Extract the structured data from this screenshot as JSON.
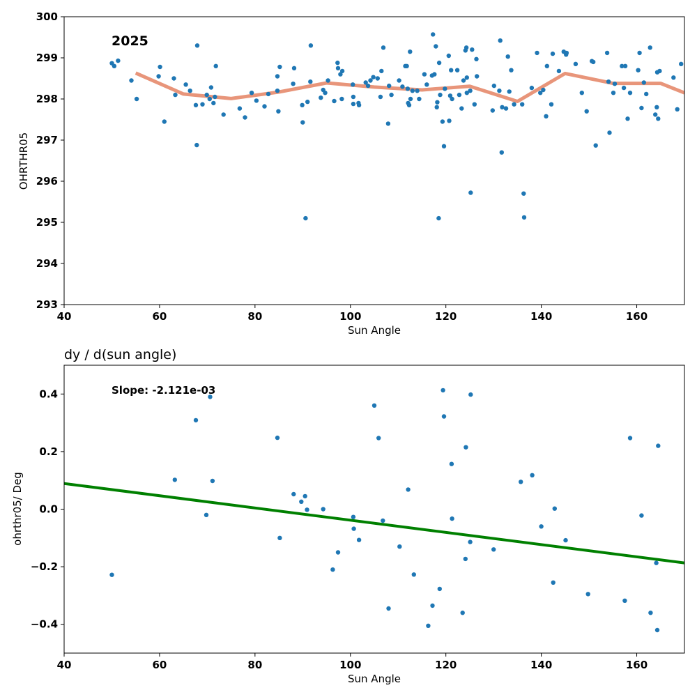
{
  "chart_data": [
    {
      "type": "scatter",
      "title": "",
      "xlabel": "Sun Angle",
      "ylabel": "OHRTHR05",
      "xlim": [
        40,
        170
      ],
      "ylim": [
        293,
        300
      ],
      "xticks": [
        "40",
        "60",
        "80",
        "100",
        "120",
        "140",
        "160"
      ],
      "yticks": [
        "293",
        "294",
        "295",
        "296",
        "297",
        "298",
        "299",
        "300"
      ],
      "annotation": "2025",
      "grid": false,
      "point_color": "#1f77b4",
      "points": [
        [
          50.0,
          298.87
        ],
        [
          50.5,
          298.8
        ],
        [
          51.3,
          298.93
        ],
        [
          54.1,
          298.45
        ],
        [
          55.2,
          298.0
        ],
        [
          59.8,
          298.55
        ],
        [
          60.1,
          298.78
        ],
        [
          61.0,
          297.45
        ],
        [
          63.0,
          298.5
        ],
        [
          63.3,
          298.1
        ],
        [
          65.5,
          298.35
        ],
        [
          66.4,
          298.2
        ],
        [
          67.6,
          297.85
        ],
        [
          67.8,
          296.88
        ],
        [
          67.9,
          299.3
        ],
        [
          69.0,
          297.87
        ],
        [
          69.9,
          298.1
        ],
        [
          70.5,
          298.0
        ],
        [
          70.8,
          298.28
        ],
        [
          71.3,
          297.9
        ],
        [
          71.6,
          298.05
        ],
        [
          71.8,
          298.8
        ],
        [
          73.4,
          297.62
        ],
        [
          76.8,
          297.77
        ],
        [
          77.9,
          297.55
        ],
        [
          79.3,
          298.15
        ],
        [
          80.3,
          297.96
        ],
        [
          82.0,
          297.82
        ],
        [
          82.8,
          298.12
        ],
        [
          84.7,
          298.2
        ],
        [
          84.9,
          297.7
        ],
        [
          84.7,
          298.55
        ],
        [
          85.2,
          298.78
        ],
        [
          88.0,
          298.37
        ],
        [
          88.2,
          298.75
        ],
        [
          89.9,
          297.85
        ],
        [
          90.0,
          297.43
        ],
        [
          90.6,
          295.1
        ],
        [
          91.0,
          297.93
        ],
        [
          91.6,
          298.42
        ],
        [
          91.7,
          299.3
        ],
        [
          93.8,
          298.03
        ],
        [
          94.3,
          298.22
        ],
        [
          94.7,
          298.15
        ],
        [
          95.3,
          298.45
        ],
        [
          96.6,
          297.95
        ],
        [
          97.3,
          298.88
        ],
        [
          97.4,
          298.75
        ],
        [
          97.9,
          298.6
        ],
        [
          98.3,
          298.68
        ],
        [
          98.2,
          298.0
        ],
        [
          100.5,
          298.35
        ],
        [
          100.6,
          298.05
        ],
        [
          100.6,
          297.88
        ],
        [
          101.7,
          297.9
        ],
        [
          101.8,
          297.85
        ],
        [
          103.2,
          298.4
        ],
        [
          103.7,
          298.32
        ],
        [
          104.2,
          298.45
        ],
        [
          104.8,
          298.53
        ],
        [
          105.7,
          298.5
        ],
        [
          106.3,
          298.05
        ],
        [
          106.5,
          298.68
        ],
        [
          106.9,
          299.25
        ],
        [
          107.9,
          297.4
        ],
        [
          108.1,
          298.32
        ],
        [
          108.6,
          298.1
        ],
        [
          110.2,
          298.45
        ],
        [
          110.9,
          298.3
        ],
        [
          111.5,
          298.8
        ],
        [
          111.8,
          298.8
        ],
        [
          112.0,
          298.25
        ],
        [
          112.1,
          297.9
        ],
        [
          112.3,
          297.85
        ],
        [
          112.6,
          298.0
        ],
        [
          112.5,
          299.15
        ],
        [
          113.0,
          298.2
        ],
        [
          114.0,
          298.2
        ],
        [
          114.4,
          298.0
        ],
        [
          115.5,
          298.6
        ],
        [
          116.0,
          298.35
        ],
        [
          117.1,
          298.57
        ],
        [
          117.3,
          299.57
        ],
        [
          117.6,
          298.6
        ],
        [
          117.9,
          299.28
        ],
        [
          118.1,
          297.8
        ],
        [
          118.2,
          297.92
        ],
        [
          118.5,
          295.1
        ],
        [
          118.6,
          298.88
        ],
        [
          118.8,
          298.1
        ],
        [
          119.3,
          297.45
        ],
        [
          119.6,
          296.85
        ],
        [
          119.8,
          298.25
        ],
        [
          120.6,
          299.05
        ],
        [
          120.7,
          297.47
        ],
        [
          120.9,
          298.08
        ],
        [
          121.1,
          298.7
        ],
        [
          121.3,
          298.0
        ],
        [
          122.4,
          298.7
        ],
        [
          122.8,
          298.1
        ],
        [
          123.3,
          297.77
        ],
        [
          123.7,
          298.45
        ],
        [
          124.1,
          299.18
        ],
        [
          124.3,
          299.25
        ],
        [
          124.4,
          298.15
        ],
        [
          124.4,
          298.52
        ],
        [
          125.1,
          298.2
        ],
        [
          125.2,
          295.72
        ],
        [
          125.5,
          299.2
        ],
        [
          126.0,
          297.87
        ],
        [
          126.4,
          298.97
        ],
        [
          126.5,
          298.55
        ],
        [
          129.8,
          297.72
        ],
        [
          130.1,
          298.32
        ],
        [
          131.2,
          298.2
        ],
        [
          131.4,
          299.42
        ],
        [
          131.7,
          296.7
        ],
        [
          131.8,
          297.8
        ],
        [
          132.6,
          297.77
        ],
        [
          133.0,
          299.03
        ],
        [
          133.3,
          298.18
        ],
        [
          133.7,
          298.7
        ],
        [
          134.3,
          297.87
        ],
        [
          136.0,
          297.87
        ],
        [
          136.3,
          295.7
        ],
        [
          136.4,
          295.12
        ],
        [
          138.0,
          298.27
        ],
        [
          139.1,
          299.12
        ],
        [
          139.8,
          298.15
        ],
        [
          140.4,
          298.22
        ],
        [
          141.0,
          297.58
        ],
        [
          141.2,
          298.8
        ],
        [
          142.1,
          297.87
        ],
        [
          142.4,
          299.1
        ],
        [
          143.7,
          298.68
        ],
        [
          144.7,
          299.15
        ],
        [
          145.2,
          299.08
        ],
        [
          145.3,
          299.12
        ],
        [
          147.2,
          298.85
        ],
        [
          148.5,
          298.15
        ],
        [
          149.5,
          297.7
        ],
        [
          150.6,
          298.92
        ],
        [
          150.9,
          298.9
        ],
        [
          151.4,
          296.87
        ],
        [
          153.8,
          299.12
        ],
        [
          154.1,
          298.42
        ],
        [
          154.3,
          297.18
        ],
        [
          155.1,
          298.15
        ],
        [
          155.4,
          298.37
        ],
        [
          156.9,
          298.8
        ],
        [
          157.3,
          298.27
        ],
        [
          157.6,
          298.8
        ],
        [
          158.1,
          297.52
        ],
        [
          158.6,
          298.15
        ],
        [
          160.3,
          298.7
        ],
        [
          160.6,
          299.12
        ],
        [
          161.0,
          297.78
        ],
        [
          161.5,
          298.4
        ],
        [
          162.0,
          298.12
        ],
        [
          162.8,
          299.25
        ],
        [
          163.9,
          297.62
        ],
        [
          164.2,
          297.8
        ],
        [
          164.3,
          298.65
        ],
        [
          164.5,
          297.52
        ],
        [
          164.8,
          298.68
        ],
        [
          167.7,
          298.52
        ],
        [
          168.5,
          297.75
        ],
        [
          169.3,
          298.85
        ]
      ],
      "trend": {
        "color": "#e8957a",
        "x": [
          55.0,
          65.0,
          75.0,
          85.0,
          95.0,
          105.0,
          115.0,
          125.0,
          135.0,
          145.0,
          155.0,
          165.0,
          170.0
        ],
        "y": [
          298.63,
          298.12,
          298.01,
          298.17,
          298.39,
          298.29,
          298.22,
          298.31,
          297.94,
          298.62,
          298.38,
          298.38,
          298.15
        ]
      }
    },
    {
      "type": "scatter",
      "title": "dy / d(sun angle)",
      "xlabel": "Sun Angle",
      "ylabel": "ohrthr05/ Deg",
      "xlim": [
        40,
        170
      ],
      "ylim": [
        -0.5,
        0.5
      ],
      "xticks": [
        "40",
        "60",
        "80",
        "100",
        "120",
        "140",
        "160"
      ],
      "yticks": [
        "−0.4",
        "−0.2",
        "0.0",
        "0.2",
        "0.4"
      ],
      "annotation": "Slope: -2.121e-03",
      "grid": false,
      "point_color": "#1f77b4",
      "points": [
        [
          50.0,
          -0.228
        ],
        [
          63.2,
          0.102
        ],
        [
          67.6,
          0.309
        ],
        [
          69.8,
          -0.02
        ],
        [
          70.6,
          0.39
        ],
        [
          71.1,
          0.098
        ],
        [
          84.7,
          0.248
        ],
        [
          85.2,
          -0.1
        ],
        [
          88.1,
          0.052
        ],
        [
          89.7,
          0.026
        ],
        [
          90.5,
          0.045
        ],
        [
          90.9,
          -0.002
        ],
        [
          94.3,
          0.0
        ],
        [
          96.3,
          -0.21
        ],
        [
          97.4,
          -0.15
        ],
        [
          100.6,
          -0.027
        ],
        [
          100.7,
          -0.068
        ],
        [
          101.8,
          -0.107
        ],
        [
          105.0,
          0.36
        ],
        [
          105.9,
          0.247
        ],
        [
          106.8,
          -0.04
        ],
        [
          108.0,
          -0.345
        ],
        [
          110.3,
          -0.13
        ],
        [
          112.1,
          0.068
        ],
        [
          113.3,
          -0.227
        ],
        [
          116.3,
          -0.405
        ],
        [
          117.2,
          -0.335
        ],
        [
          118.7,
          -0.277
        ],
        [
          119.4,
          0.413
        ],
        [
          119.6,
          0.322
        ],
        [
          121.2,
          0.157
        ],
        [
          121.3,
          -0.033
        ],
        [
          123.5,
          -0.36
        ],
        [
          124.2,
          0.215
        ],
        [
          124.1,
          -0.173
        ],
        [
          125.1,
          -0.114
        ],
        [
          125.2,
          0.398
        ],
        [
          130.0,
          -0.14
        ],
        [
          135.7,
          0.095
        ],
        [
          138.1,
          0.118
        ],
        [
          140.0,
          -0.06
        ],
        [
          142.5,
          -0.255
        ],
        [
          142.8,
          0.002
        ],
        [
          145.1,
          -0.108
        ],
        [
          149.8,
          -0.295
        ],
        [
          157.5,
          -0.318
        ],
        [
          158.6,
          0.247
        ],
        [
          161.0,
          -0.022
        ],
        [
          162.9,
          -0.36
        ],
        [
          164.1,
          -0.187
        ],
        [
          164.3,
          -0.42
        ],
        [
          164.5,
          0.22
        ]
      ],
      "fit_line": {
        "color": "#008000",
        "x": [
          40,
          170
        ],
        "y": [
          0.089,
          -0.187
        ]
      }
    }
  ]
}
